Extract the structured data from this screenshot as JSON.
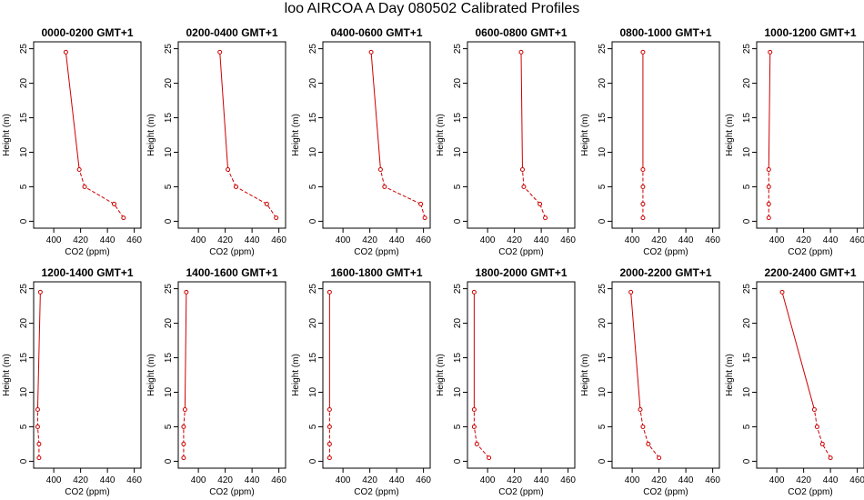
{
  "figure": {
    "title": "loo AIRCOA A  Day 080502  Calibrated Profiles"
  },
  "colors": {
    "line": "#cc0000",
    "point": "#cc0000",
    "axis": "#000000"
  },
  "chart_data": [
    {
      "type": "line",
      "title": "0000-0200 GMT+1",
      "xlabel": "CO2 (ppm)",
      "ylabel": "Height (m)",
      "xlim": [
        385,
        465
      ],
      "ylim": [
        -1,
        26
      ],
      "xticks": [
        400,
        420,
        440,
        460
      ],
      "yticks": [
        0,
        5,
        10,
        15,
        20,
        25
      ],
      "series": [
        {
          "x": [
            452,
            445,
            423,
            419,
            409
          ],
          "y": [
            0.5,
            2.5,
            5,
            7.5,
            24.5
          ]
        }
      ]
    },
    {
      "type": "line",
      "title": "0200-0400 GMT+1",
      "xlabel": "CO2 (ppm)",
      "ylabel": "Height (m)",
      "xlim": [
        385,
        465
      ],
      "ylim": [
        -1,
        26
      ],
      "xticks": [
        400,
        420,
        440,
        460
      ],
      "yticks": [
        0,
        5,
        10,
        15,
        20,
        25
      ],
      "series": [
        {
          "x": [
            458,
            451,
            428,
            422,
            416
          ],
          "y": [
            0.5,
            2.5,
            5,
            7.5,
            24.5
          ]
        }
      ]
    },
    {
      "type": "line",
      "title": "0400-0600 GMT+1",
      "xlabel": "CO2 (ppm)",
      "ylabel": "Height (m)",
      "xlim": [
        385,
        465
      ],
      "ylim": [
        -1,
        26
      ],
      "xticks": [
        400,
        420,
        440,
        460
      ],
      "yticks": [
        0,
        5,
        10,
        15,
        20,
        25
      ],
      "series": [
        {
          "x": [
            461,
            458,
            431,
            428,
            421
          ],
          "y": [
            0.5,
            2.5,
            5,
            7.5,
            24.5
          ]
        }
      ]
    },
    {
      "type": "line",
      "title": "0600-0800 GMT+1",
      "xlabel": "CO2 (ppm)",
      "ylabel": "Height (m)",
      "xlim": [
        385,
        465
      ],
      "ylim": [
        -1,
        26
      ],
      "xticks": [
        400,
        420,
        440,
        460
      ],
      "yticks": [
        0,
        5,
        10,
        15,
        20,
        25
      ],
      "series": [
        {
          "x": [
            443,
            439,
            427,
            426,
            425
          ],
          "y": [
            0.5,
            2.5,
            5,
            7.5,
            24.5
          ]
        }
      ]
    },
    {
      "type": "line",
      "title": "0800-1000 GMT+1",
      "xlabel": "CO2 (ppm)",
      "ylabel": "Height (m)",
      "xlim": [
        385,
        465
      ],
      "ylim": [
        -1,
        26
      ],
      "xticks": [
        400,
        420,
        440,
        460
      ],
      "yticks": [
        0,
        5,
        10,
        15,
        20,
        25
      ],
      "series": [
        {
          "x": [
            408,
            408,
            408,
            408,
            408
          ],
          "y": [
            0.5,
            2.5,
            5,
            7.5,
            24.5
          ]
        }
      ]
    },
    {
      "type": "line",
      "title": "1000-1200 GMT+1",
      "xlabel": "CO2 (ppm)",
      "ylabel": "Height (m)",
      "xlim": [
        385,
        465
      ],
      "ylim": [
        -1,
        26
      ],
      "xticks": [
        400,
        420,
        440,
        460
      ],
      "yticks": [
        0,
        5,
        10,
        15,
        20,
        25
      ],
      "series": [
        {
          "x": [
            394,
            394,
            394,
            394,
            395
          ],
          "y": [
            0.5,
            2.5,
            5,
            7.5,
            24.5
          ]
        }
      ]
    },
    {
      "type": "line",
      "title": "1200-1400 GMT+1",
      "xlabel": "CO2 (ppm)",
      "ylabel": "Height (m)",
      "xlim": [
        385,
        465
      ],
      "ylim": [
        -1,
        26
      ],
      "xticks": [
        400,
        420,
        440,
        460
      ],
      "yticks": [
        0,
        5,
        10,
        15,
        20,
        25
      ],
      "series": [
        {
          "x": [
            389,
            389,
            388,
            388,
            390
          ],
          "y": [
            0.5,
            2.5,
            5,
            7.5,
            24.5
          ]
        }
      ]
    },
    {
      "type": "line",
      "title": "1400-1600 GMT+1",
      "xlabel": "CO2 (ppm)",
      "ylabel": "Height (m)",
      "xlim": [
        385,
        465
      ],
      "ylim": [
        -1,
        26
      ],
      "xticks": [
        400,
        420,
        440,
        460
      ],
      "yticks": [
        0,
        5,
        10,
        15,
        20,
        25
      ],
      "series": [
        {
          "x": [
            389,
            389,
            389,
            390,
            391
          ],
          "y": [
            0.5,
            2.5,
            5,
            7.5,
            24.5
          ]
        }
      ]
    },
    {
      "type": "line",
      "title": "1600-1800 GMT+1",
      "xlabel": "CO2 (ppm)",
      "ylabel": "Height (m)",
      "xlim": [
        385,
        465
      ],
      "ylim": [
        -1,
        26
      ],
      "xticks": [
        400,
        420,
        440,
        460
      ],
      "yticks": [
        0,
        5,
        10,
        15,
        20,
        25
      ],
      "series": [
        {
          "x": [
            390,
            390,
            390,
            390,
            390
          ],
          "y": [
            0.5,
            2.5,
            5,
            7.5,
            24.5
          ]
        }
      ]
    },
    {
      "type": "line",
      "title": "1800-2000 GMT+1",
      "xlabel": "CO2 (ppm)",
      "ylabel": "Height (m)",
      "xlim": [
        385,
        465
      ],
      "ylim": [
        -1,
        26
      ],
      "xticks": [
        400,
        420,
        440,
        460
      ],
      "yticks": [
        0,
        5,
        10,
        15,
        20,
        25
      ],
      "series": [
        {
          "x": [
            401,
            392,
            390,
            390,
            390
          ],
          "y": [
            0.5,
            2.5,
            5,
            7.5,
            24.5
          ]
        }
      ]
    },
    {
      "type": "line",
      "title": "2000-2200 GMT+1",
      "xlabel": "CO2 (ppm)",
      "ylabel": "Height (m)",
      "xlim": [
        385,
        465
      ],
      "ylim": [
        -1,
        26
      ],
      "xticks": [
        400,
        420,
        440,
        460
      ],
      "yticks": [
        0,
        5,
        10,
        15,
        20,
        25
      ],
      "series": [
        {
          "x": [
            420,
            412,
            408,
            406,
            399
          ],
          "y": [
            0.5,
            2.5,
            5,
            7.5,
            24.5
          ]
        }
      ]
    },
    {
      "type": "line",
      "title": "2200-2400 GMT+1",
      "xlabel": "CO2 (ppm)",
      "ylabel": "Height (m)",
      "xlim": [
        385,
        465
      ],
      "ylim": [
        -1,
        26
      ],
      "xticks": [
        400,
        420,
        440,
        460
      ],
      "yticks": [
        0,
        5,
        10,
        15,
        20,
        25
      ],
      "series": [
        {
          "x": [
            440,
            434,
            430,
            428,
            404
          ],
          "y": [
            0.5,
            2.5,
            5,
            7.5,
            24.5
          ]
        }
      ]
    }
  ]
}
